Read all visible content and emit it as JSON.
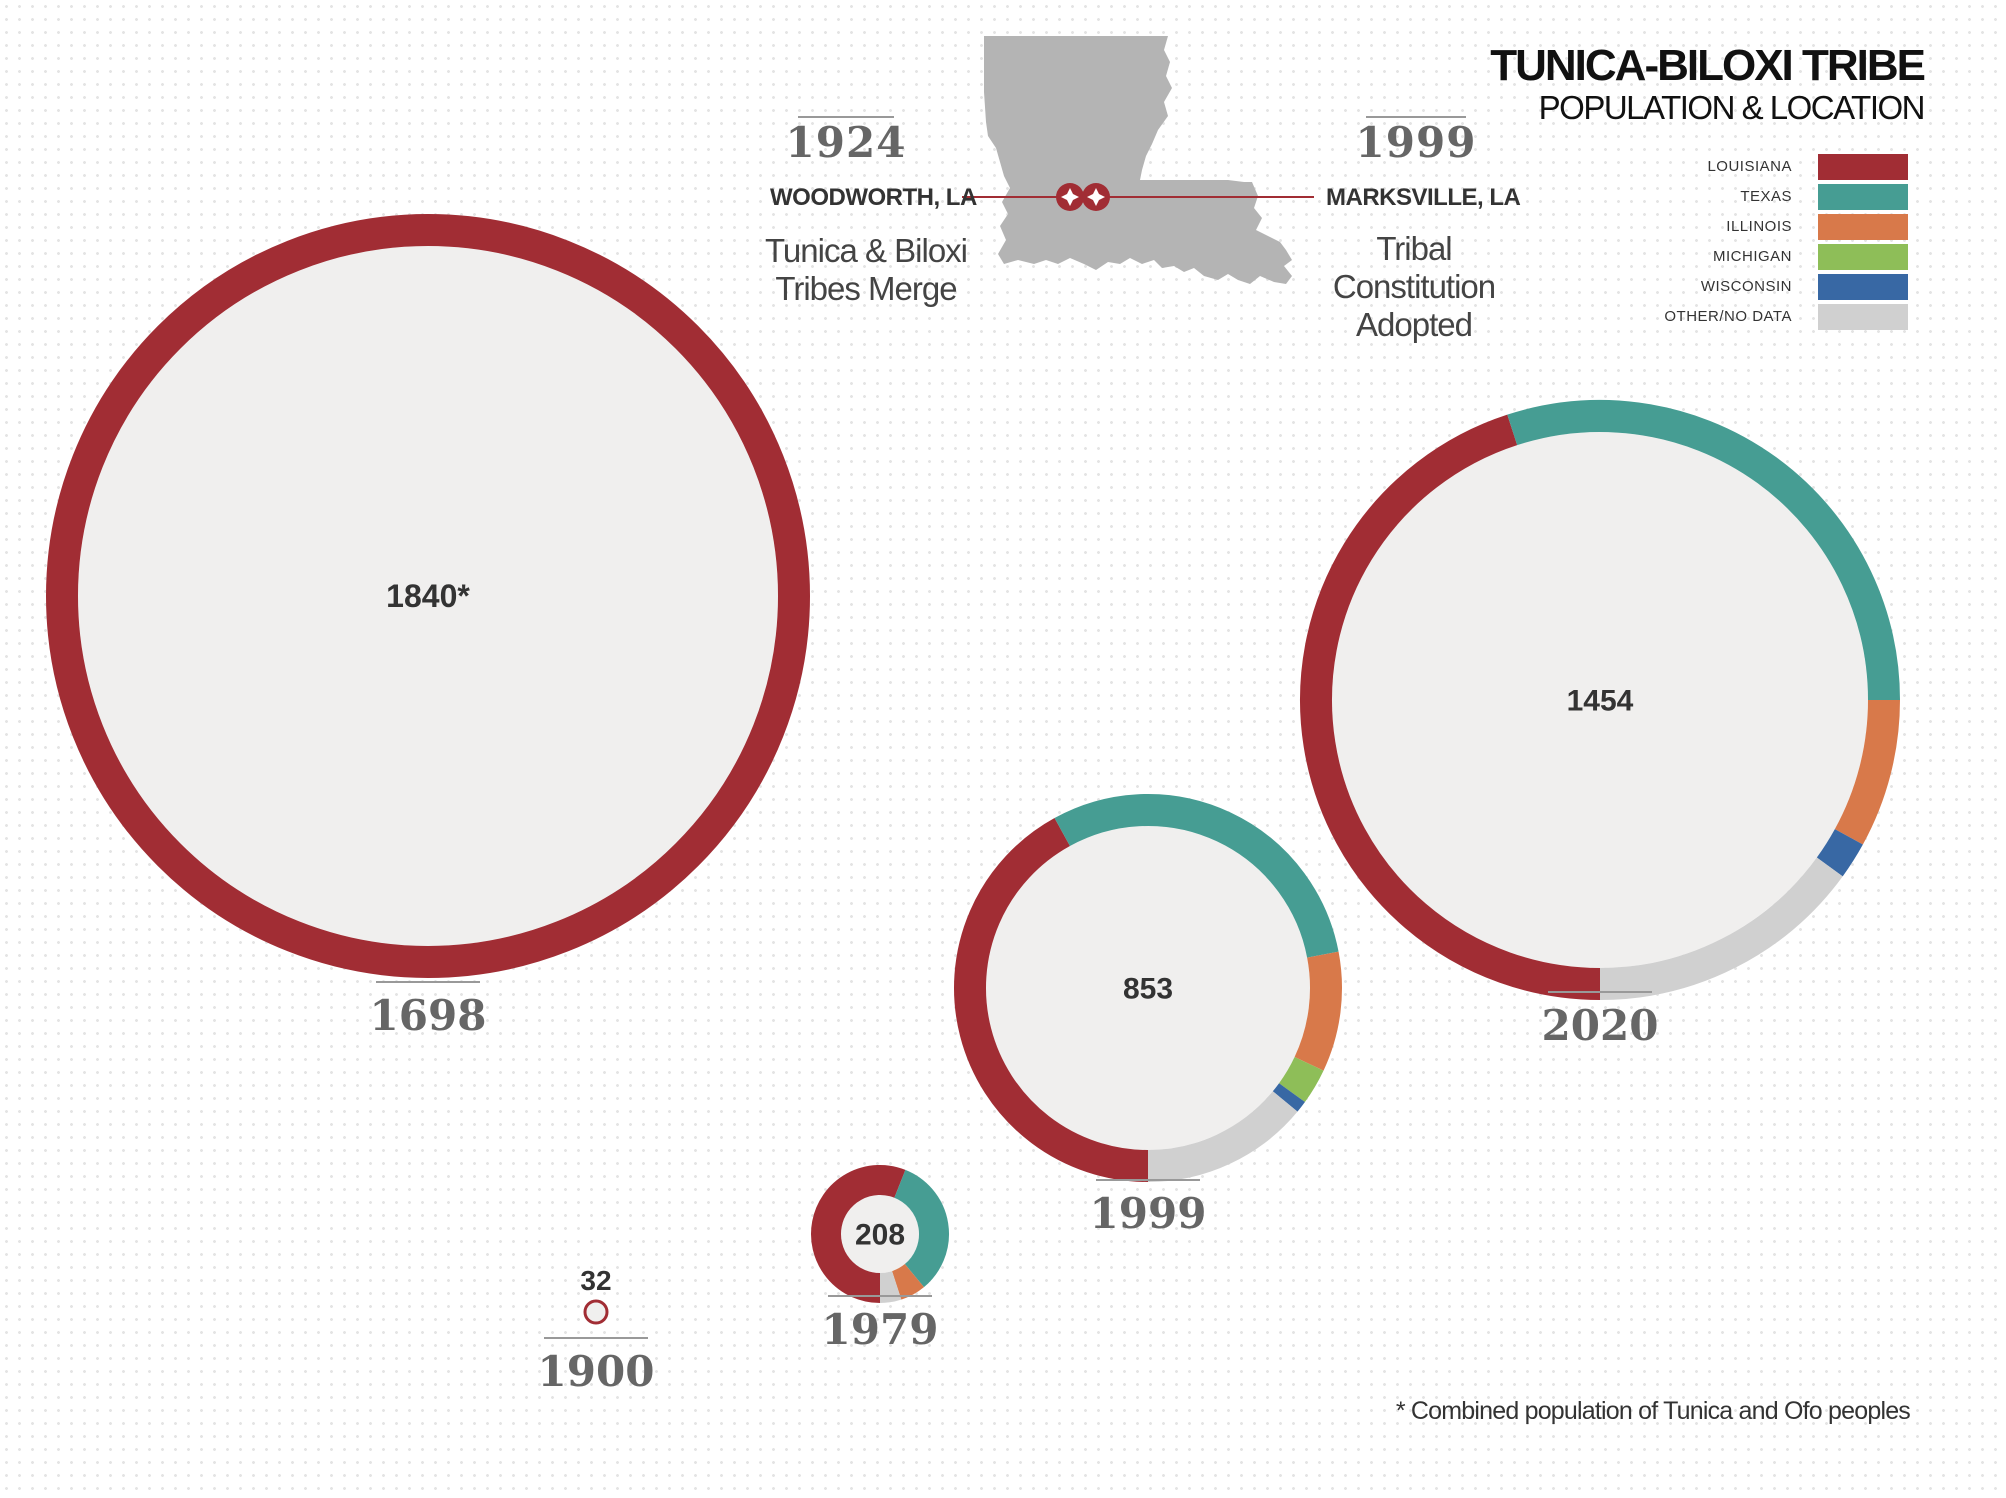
{
  "header": {
    "title": "TUNICA-BILOXI TRIBE",
    "subtitle": "POPULATION & LOCATION"
  },
  "legend": [
    {
      "label": "LOUISIANA",
      "color": "#a12d34"
    },
    {
      "label": "TEXAS",
      "color": "#469d93"
    },
    {
      "label": "ILLINOIS",
      "color": "#d8794a"
    },
    {
      "label": "MICHIGAN",
      "color": "#8ebe58"
    },
    {
      "label": "WISCONSIN",
      "color": "#3868a4"
    },
    {
      "label": "OTHER/NO DATA",
      "color": "#d0d0d0"
    }
  ],
  "events": [
    {
      "year": "1924",
      "place": "WOODWORTH, LA",
      "description": [
        "Tunica & Biloxi",
        "Tribes Merge"
      ]
    },
    {
      "year": "1999",
      "place": "MARKSVILLE, LA",
      "description": [
        "Tribal",
        "Constitution",
        "Adopted"
      ]
    }
  ],
  "map": {
    "icon": "louisiana-map",
    "markers": [
      "star-marker",
      "star-marker"
    ]
  },
  "chart_data": {
    "type": "donut",
    "title": "TUNICA-BILOXI TRIBE",
    "subtitle": "POPULATION & LOCATION",
    "series_names": [
      "LOUISIANA",
      "TEXAS",
      "ILLINOIS",
      "MICHIGAN",
      "WISCONSIN",
      "OTHER/NO DATA"
    ],
    "points": [
      {
        "year": "1698",
        "label": "1840*",
        "total": 1840,
        "shares": [
          1.0,
          0,
          0,
          0,
          0,
          0
        ]
      },
      {
        "year": "1900",
        "label": "32",
        "total": 32,
        "shares": [
          1.0,
          0,
          0,
          0,
          0,
          0
        ]
      },
      {
        "year": "1979",
        "label": "208",
        "total": 208,
        "shares": [
          0.56,
          0.33,
          0.06,
          0,
          0,
          0.05
        ]
      },
      {
        "year": "1999",
        "label": "853",
        "total": 853,
        "shares": [
          0.42,
          0.3,
          0.1,
          0.03,
          0.01,
          0.14
        ]
      },
      {
        "year": "2020",
        "label": "1454",
        "total": 1454,
        "shares": [
          0.45,
          0.3,
          0.08,
          0,
          0.02,
          0.15
        ]
      }
    ]
  },
  "footnote": "* Combined population of Tunica and Ofo peoples"
}
